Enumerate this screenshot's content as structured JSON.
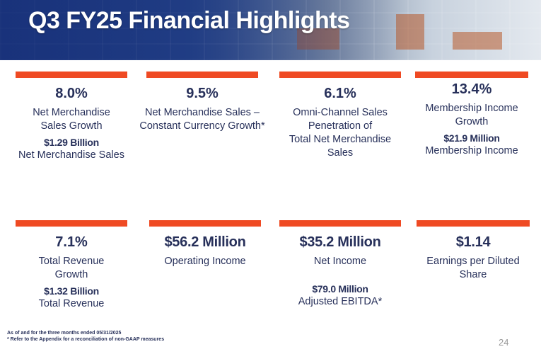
{
  "slide": {
    "title": "Q3 FY25 Financial Highlights",
    "page_number": "24",
    "footnotes": [
      "As of and for the three months ended 05/31/2025",
      "* Refer to the Appendix for a reconciliation of non-GAAP measures"
    ]
  },
  "colors": {
    "accent_bar": "#ef4a23",
    "text": "#27305a",
    "header_blue": "#1f3f8a"
  },
  "metrics": [
    {
      "value": "8.0%",
      "label_lines": [
        "Net Merchandise",
        "Sales Growth"
      ],
      "sub_value": "$1.29 Billion",
      "sub_label": "Net Merchandise Sales"
    },
    {
      "value": "9.5%",
      "label_lines": [
        "Net Merchandise Sales –",
        "Constant Currency Growth*"
      ]
    },
    {
      "value": "6.1%",
      "label_lines": [
        "Omni-Channel Sales",
        "Penetration of",
        "Total Net Merchandise",
        "Sales"
      ]
    },
    {
      "value": "13.4%",
      "label_lines": [
        "Membership Income",
        "Growth"
      ],
      "sub_value": "$21.9 Million",
      "sub_label": "Membership Income"
    },
    {
      "value": "7.1%",
      "label_lines": [
        "Total Revenue",
        "Growth"
      ],
      "sub_value": "$1.32 Billion",
      "sub_label": "Total Revenue"
    },
    {
      "value": "$56.2 Million",
      "label_lines": [
        "Operating Income"
      ]
    },
    {
      "value": "$35.2 Million",
      "label_lines": [
        "Net Income"
      ],
      "sub_value": "$79.0 Million",
      "sub_label": "Adjusted EBITDA*"
    },
    {
      "value": "$1.14",
      "label_lines": [
        "Earnings per Diluted Share"
      ]
    }
  ]
}
